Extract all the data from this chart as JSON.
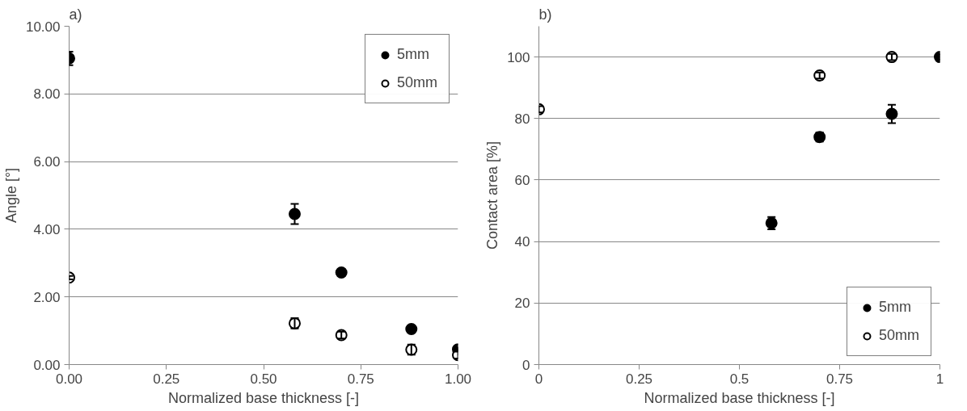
{
  "chart_data": [
    {
      "type": "scatter",
      "title": "a)",
      "xlabel": "Normalized base thickness [-]",
      "ylabel": "Angle [°]",
      "xlim": [
        0,
        1
      ],
      "xticks": [
        {
          "value": 0,
          "label": "0.00"
        },
        {
          "value": 0.25,
          "label": "0.25"
        },
        {
          "value": 0.5,
          "label": "0.50"
        },
        {
          "value": 0.75,
          "label": "0.75"
        },
        {
          "value": 1,
          "label": "1.00"
        }
      ],
      "ylim": [
        0,
        10
      ],
      "yticks": [
        {
          "value": 0,
          "label": "0.00"
        },
        {
          "value": 2,
          "label": "2.00"
        },
        {
          "value": 4,
          "label": "4.00"
        },
        {
          "value": 6,
          "label": "6.00"
        },
        {
          "value": 8,
          "label": "8.00"
        },
        {
          "value": 10,
          "label": "10.00"
        }
      ],
      "grid": "y",
      "legend": "top right",
      "marker": "circle",
      "series": [
        {
          "name": "5mm",
          "color": "#000000",
          "x": [
            0,
            0.58,
            0.7,
            0.88,
            1
          ],
          "values": [
            9.05,
            4.45,
            2.72,
            1.05,
            0.45
          ],
          "errors": [
            0.2,
            0.3,
            0.1,
            0.1,
            0.05
          ]
        },
        {
          "name": "50mm",
          "color": "#ffffff",
          "x": [
            0,
            0.58,
            0.7,
            0.88,
            1
          ],
          "values": [
            2.57,
            1.22,
            0.87,
            0.44,
            0.28
          ],
          "errors": [
            0.05,
            0.15,
            0.1,
            0.15,
            0.1
          ]
        }
      ]
    },
    {
      "type": "scatter",
      "title": "b)",
      "xlabel": "Normalized base thickness [-]",
      "ylabel": "Contact area [%]",
      "xlim": [
        0,
        1
      ],
      "xticks": [
        0,
        0.25,
        {
          "value": 0.5,
          "label": "0.5"
        },
        0.75,
        1
      ],
      "ylim": [
        0,
        110
      ],
      "yticks": [
        0,
        20,
        40,
        60,
        80,
        100
      ],
      "grid": "y",
      "legend": "bottom right",
      "marker": "circle",
      "series": [
        {
          "name": "5mm",
          "color": "#000000",
          "x": [
            0.58,
            0.7,
            0.88,
            1
          ],
          "values": [
            46,
            74,
            81.5,
            100
          ],
          "errors": [
            2,
            1.5,
            3,
            1
          ]
        },
        {
          "name": "50mm",
          "color": "#ffffff",
          "x": [
            0,
            0.7,
            0.88
          ],
          "values": [
            83,
            94,
            100
          ],
          "errors": [
            1,
            1,
            1
          ]
        }
      ]
    }
  ]
}
